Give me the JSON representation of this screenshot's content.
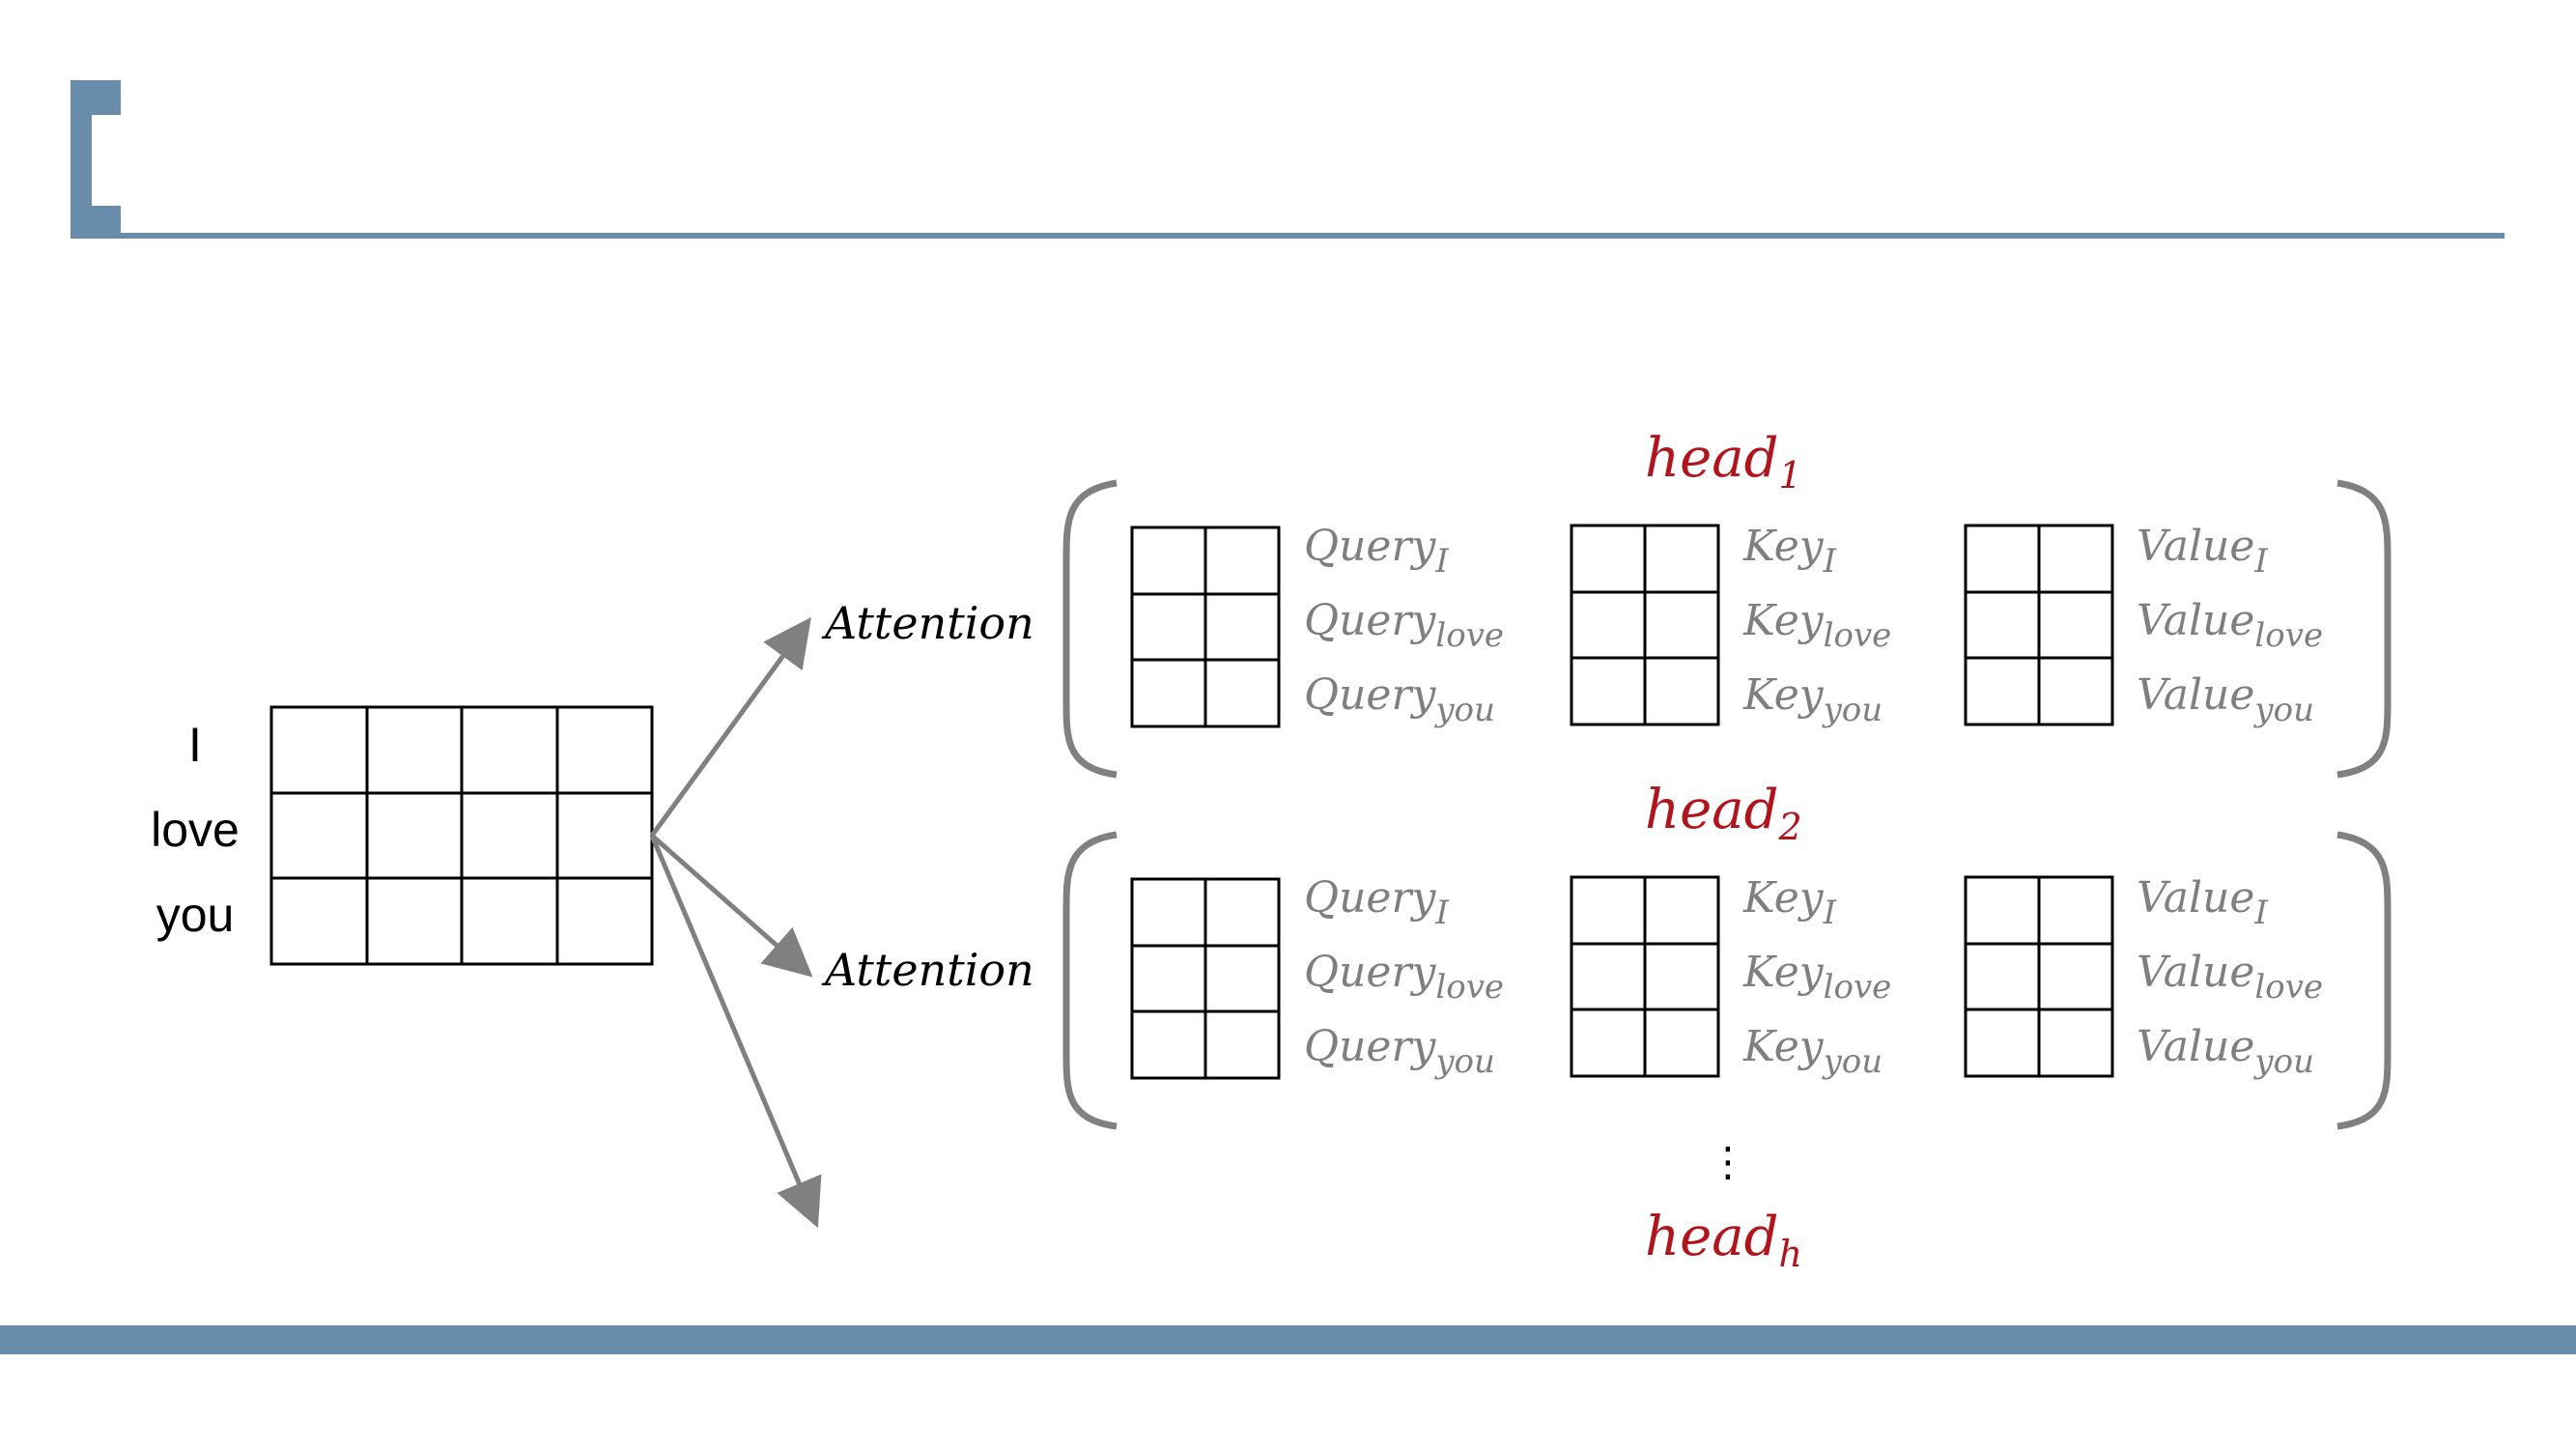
{
  "colors": {
    "accent": "#6a8cab",
    "head": "#b0141c",
    "label_gray": "#7f7f7f",
    "arrow": "#808080"
  },
  "input_words": [
    "I",
    "love",
    "you"
  ],
  "attention_label": "Attention",
  "heads": [
    {
      "name": "head",
      "sub": "1"
    },
    {
      "name": "head",
      "sub": "2"
    },
    {
      "name": "head",
      "sub": "h"
    }
  ],
  "ellipsis": "⋮",
  "qkv": {
    "query": {
      "base": "Query",
      "subs": [
        "I",
        "love",
        "you"
      ]
    },
    "key": {
      "base": "Key",
      "subs": [
        "I",
        "love",
        "you"
      ]
    },
    "value": {
      "base": "Value",
      "subs": [
        "I",
        "love",
        "you"
      ]
    }
  }
}
